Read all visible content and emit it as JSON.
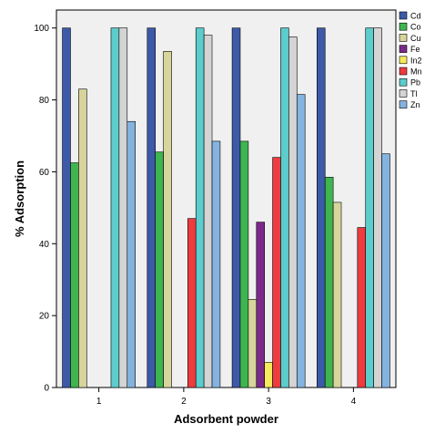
{
  "chart_data": {
    "type": "bar",
    "title": "",
    "xlabel": "Adsorbent powder",
    "ylabel": "% Adsorption",
    "categories": [
      "1",
      "2",
      "3",
      "4"
    ],
    "ylim": [
      0,
      105
    ],
    "yticks": [
      0,
      20,
      40,
      60,
      80,
      100
    ],
    "grid": false,
    "legend_position": "right",
    "series": [
      {
        "name": "Cd",
        "color": "#3d5aa8",
        "values": [
          100,
          100,
          100,
          100
        ]
      },
      {
        "name": "Co",
        "color": "#3fb550",
        "values": [
          62.5,
          65.5,
          68.5,
          58.5
        ]
      },
      {
        "name": "Cu",
        "color": "#d8d59c",
        "values": [
          83,
          93.5,
          24.5,
          51.5
        ]
      },
      {
        "name": "Fe",
        "color": "#7b2a8a",
        "values": [
          null,
          null,
          46,
          null
        ]
      },
      {
        "name": "In2",
        "color": "#f7ea5c",
        "values": [
          null,
          null,
          7,
          null
        ]
      },
      {
        "name": "Mn",
        "color": "#ee3b3f",
        "values": [
          null,
          47,
          64,
          44.5
        ]
      },
      {
        "name": "Pb",
        "color": "#5ccccc",
        "values": [
          100,
          100,
          100,
          100
        ]
      },
      {
        "name": "Tl",
        "color": "#d4d4d4",
        "values": [
          100,
          98,
          97.5,
          100
        ]
      },
      {
        "name": "Zn",
        "color": "#85b3e0",
        "values": [
          74,
          68.5,
          81.5,
          65
        ]
      }
    ]
  }
}
